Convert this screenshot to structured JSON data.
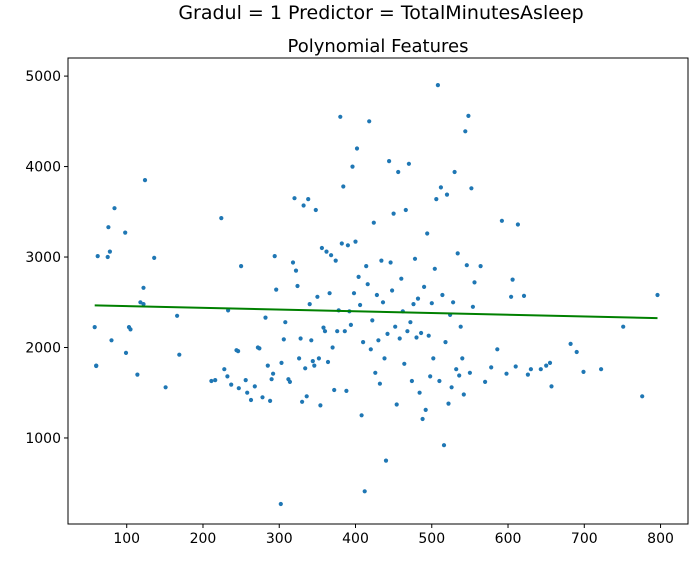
{
  "chart_data": {
    "type": "scatter",
    "suptitle": "Gradul = 1 Predictor = TotalMinutesAsleep",
    "title": "Polynomial Features",
    "xlabel": "",
    "ylabel": "",
    "xlim": [
      23,
      836
    ],
    "ylim": [
      49,
      5200
    ],
    "xticks": [
      100,
      200,
      300,
      400,
      500,
      600,
      700,
      800
    ],
    "yticks": [
      1000,
      2000,
      3000,
      4000,
      5000
    ],
    "point_color": "#1f77b4",
    "line_color": "#008000",
    "grid": false,
    "fit_line": {
      "x": [
        58,
        796
      ],
      "y": [
        2465,
        2325
      ]
    },
    "points": [
      [
        58,
        2225
      ],
      [
        60,
        1800
      ],
      [
        60,
        1795
      ],
      [
        62,
        3010
      ],
      [
        75,
        3000
      ],
      [
        76,
        3330
      ],
      [
        78,
        3060
      ],
      [
        80,
        2080
      ],
      [
        84,
        3540
      ],
      [
        98,
        3270
      ],
      [
        99,
        1940
      ],
      [
        103,
        2225
      ],
      [
        105,
        2200
      ],
      [
        114,
        1700
      ],
      [
        118,
        2500
      ],
      [
        122,
        2480
      ],
      [
        122,
        2660
      ],
      [
        124,
        3850
      ],
      [
        136,
        2990
      ],
      [
        151,
        1560
      ],
      [
        166,
        2350
      ],
      [
        169,
        1920
      ],
      [
        211,
        1630
      ],
      [
        216,
        1640
      ],
      [
        224,
        3430
      ],
      [
        228,
        1760
      ],
      [
        232,
        1680
      ],
      [
        233,
        2410
      ],
      [
        237,
        1590
      ],
      [
        244,
        1970
      ],
      [
        246,
        1960
      ],
      [
        247,
        1550
      ],
      [
        250,
        2900
      ],
      [
        256,
        1640
      ],
      [
        258,
        1500
      ],
      [
        263,
        1420
      ],
      [
        268,
        1570
      ],
      [
        272,
        2000
      ],
      [
        274,
        1990
      ],
      [
        278,
        1450
      ],
      [
        282,
        2330
      ],
      [
        285,
        1800
      ],
      [
        288,
        1410
      ],
      [
        290,
        1650
      ],
      [
        292,
        1710
      ],
      [
        294,
        3010
      ],
      [
        296,
        2640
      ],
      [
        302,
        270
      ],
      [
        303,
        1830
      ],
      [
        306,
        2090
      ],
      [
        308,
        2280
      ],
      [
        312,
        1650
      ],
      [
        314,
        1620
      ],
      [
        318,
        2940
      ],
      [
        320,
        3650
      ],
      [
        322,
        2850
      ],
      [
        324,
        2680
      ],
      [
        326,
        1880
      ],
      [
        328,
        2100
      ],
      [
        330,
        1400
      ],
      [
        332,
        3570
      ],
      [
        334,
        1770
      ],
      [
        336,
        1460
      ],
      [
        338,
        3640
      ],
      [
        340,
        2480
      ],
      [
        342,
        2080
      ],
      [
        344,
        1850
      ],
      [
        346,
        1800
      ],
      [
        348,
        3520
      ],
      [
        350,
        2560
      ],
      [
        352,
        1880
      ],
      [
        354,
        1360
      ],
      [
        356,
        3100
      ],
      [
        358,
        2220
      ],
      [
        360,
        2180
      ],
      [
        362,
        3060
      ],
      [
        364,
        1840
      ],
      [
        366,
        2600
      ],
      [
        368,
        3020
      ],
      [
        370,
        2000
      ],
      [
        372,
        1530
      ],
      [
        374,
        2960
      ],
      [
        376,
        2180
      ],
      [
        378,
        2410
      ],
      [
        380,
        4550
      ],
      [
        382,
        3150
      ],
      [
        384,
        3780
      ],
      [
        386,
        2180
      ],
      [
        388,
        1520
      ],
      [
        390,
        3130
      ],
      [
        392,
        2400
      ],
      [
        394,
        2250
      ],
      [
        396,
        4000
      ],
      [
        398,
        2600
      ],
      [
        400,
        3170
      ],
      [
        402,
        4200
      ],
      [
        404,
        2780
      ],
      [
        406,
        2470
      ],
      [
        408,
        1250
      ],
      [
        410,
        2060
      ],
      [
        412,
        410
      ],
      [
        414,
        2900
      ],
      [
        416,
        2700
      ],
      [
        418,
        4500
      ],
      [
        420,
        1980
      ],
      [
        422,
        2300
      ],
      [
        424,
        3380
      ],
      [
        426,
        1720
      ],
      [
        428,
        2580
      ],
      [
        430,
        2080
      ],
      [
        432,
        1600
      ],
      [
        434,
        2960
      ],
      [
        436,
        2500
      ],
      [
        438,
        1880
      ],
      [
        440,
        750
      ],
      [
        442,
        2150
      ],
      [
        444,
        4060
      ],
      [
        446,
        2940
      ],
      [
        448,
        2630
      ],
      [
        450,
        3480
      ],
      [
        452,
        2230
      ],
      [
        454,
        1370
      ],
      [
        456,
        3940
      ],
      [
        458,
        2100
      ],
      [
        460,
        2760
      ],
      [
        462,
        2400
      ],
      [
        464,
        1820
      ],
      [
        466,
        3520
      ],
      [
        468,
        2180
      ],
      [
        470,
        4030
      ],
      [
        472,
        2280
      ],
      [
        474,
        1630
      ],
      [
        476,
        2480
      ],
      [
        478,
        2980
      ],
      [
        480,
        2110
      ],
      [
        482,
        2540
      ],
      [
        484,
        1500
      ],
      [
        486,
        2160
      ],
      [
        488,
        1210
      ],
      [
        490,
        2670
      ],
      [
        492,
        1310
      ],
      [
        494,
        3260
      ],
      [
        496,
        2130
      ],
      [
        498,
        1680
      ],
      [
        500,
        2490
      ],
      [
        502,
        1880
      ],
      [
        504,
        2870
      ],
      [
        506,
        3640
      ],
      [
        508,
        4900
      ],
      [
        510,
        1630
      ],
      [
        512,
        3770
      ],
      [
        514,
        2580
      ],
      [
        516,
        920
      ],
      [
        518,
        2060
      ],
      [
        520,
        3690
      ],
      [
        522,
        1380
      ],
      [
        524,
        2360
      ],
      [
        526,
        1560
      ],
      [
        528,
        2500
      ],
      [
        530,
        3940
      ],
      [
        532,
        1760
      ],
      [
        534,
        3040
      ],
      [
        536,
        1690
      ],
      [
        538,
        2230
      ],
      [
        540,
        1880
      ],
      [
        542,
        1480
      ],
      [
        544,
        4390
      ],
      [
        546,
        2910
      ],
      [
        548,
        4560
      ],
      [
        550,
        1720
      ],
      [
        552,
        3760
      ],
      [
        554,
        2450
      ],
      [
        556,
        2720
      ],
      [
        564,
        2900
      ],
      [
        570,
        1620
      ],
      [
        578,
        1780
      ],
      [
        586,
        1980
      ],
      [
        592,
        3400
      ],
      [
        598,
        1710
      ],
      [
        604,
        2560
      ],
      [
        606,
        2750
      ],
      [
        610,
        1790
      ],
      [
        613,
        3360
      ],
      [
        621,
        2570
      ],
      [
        626,
        1700
      ],
      [
        630,
        1760
      ],
      [
        643,
        1760
      ],
      [
        650,
        1800
      ],
      [
        655,
        1830
      ],
      [
        657,
        1570
      ],
      [
        682,
        2040
      ],
      [
        690,
        1950
      ],
      [
        699,
        1730
      ],
      [
        722,
        1760
      ],
      [
        751,
        2230
      ],
      [
        776,
        1460
      ],
      [
        796,
        2580
      ]
    ]
  }
}
